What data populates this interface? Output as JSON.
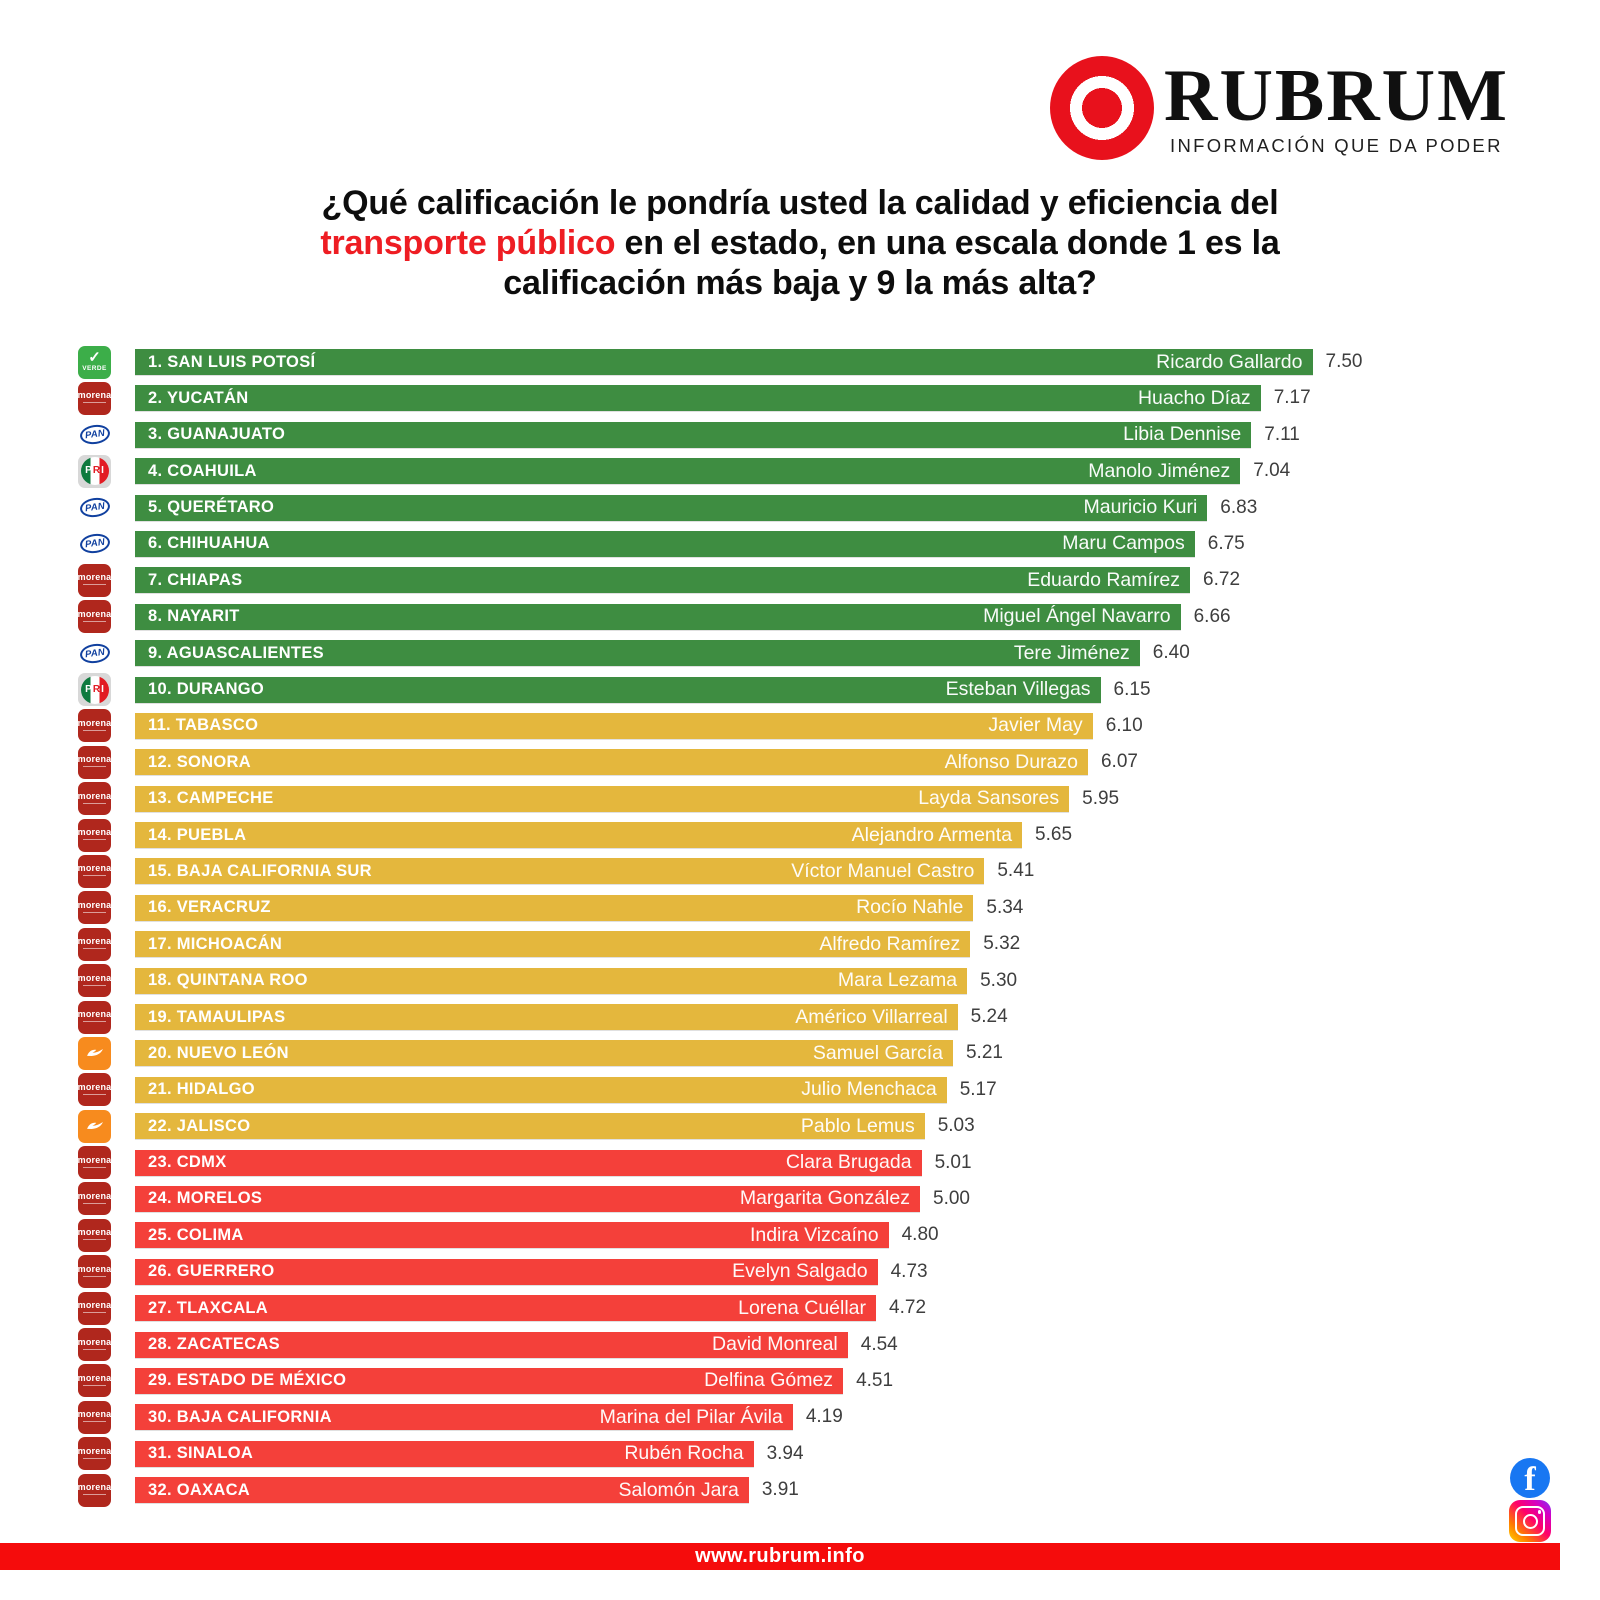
{
  "header": {
    "brand": "RUBRUM",
    "tagline": "INFORMACIÓN QUE DA PODER"
  },
  "title": {
    "line1": "¿Qué calificación le pondría usted la calidad y eficiencia del",
    "line2_highlight": "transporte público",
    "line2_rest": " en el estado, en una escala donde 1 es la",
    "line3": "calificación más baja y 9 la más alta?"
  },
  "footer": {
    "url": "www.rubrum.info"
  },
  "social": {
    "facebook": "Facebook",
    "instagram": "Instagram"
  },
  "colors": {
    "green_bar": "#3e8d41",
    "yellow_bar": "#e4b73d",
    "red_bar": "#f4403a",
    "footer_red": "#f50c0c",
    "logo_red": "#e8111c",
    "title_highlight": "#ee1d23"
  },
  "parties": {
    "PVEM": "VERDE",
    "MORENA": "morena",
    "PAN": "PAN",
    "PRI": "PRI",
    "MC": "MC"
  },
  "chart_data": {
    "type": "bar",
    "orientation": "horizontal",
    "title": "¿Qué calificación le pondría usted la calidad y eficiencia del transporte público en el estado, en una escala donde 1 es la calificación más baja y 9 la más alta?",
    "value_scale": {
      "min": 1,
      "max": 9
    },
    "rows": [
      {
        "rank": 1,
        "state": "SAN LUIS POTOSÍ",
        "governor": "Ricardo Gallardo",
        "score": "7.50",
        "party": "PVEM",
        "group": "green"
      },
      {
        "rank": 2,
        "state": "YUCATÁN",
        "governor": "Huacho Díaz",
        "score": "7.17",
        "party": "MORENA",
        "group": "green"
      },
      {
        "rank": 3,
        "state": "GUANAJUATO",
        "governor": "Libia Dennise",
        "score": "7.11",
        "party": "PAN",
        "group": "green"
      },
      {
        "rank": 4,
        "state": "COAHUILA",
        "governor": "Manolo Jiménez",
        "score": "7.04",
        "party": "PRI",
        "group": "green"
      },
      {
        "rank": 5,
        "state": "QUERÉTARO",
        "governor": "Mauricio Kuri",
        "score": "6.83",
        "party": "PAN",
        "group": "green"
      },
      {
        "rank": 6,
        "state": "CHIHUAHUA",
        "governor": "Maru Campos",
        "score": "6.75",
        "party": "PAN",
        "group": "green"
      },
      {
        "rank": 7,
        "state": "CHIAPAS",
        "governor": "Eduardo Ramírez",
        "score": "6.72",
        "party": "MORENA",
        "group": "green"
      },
      {
        "rank": 8,
        "state": "NAYARIT",
        "governor": "Miguel Ángel Navarro",
        "score": "6.66",
        "party": "MORENA",
        "group": "green"
      },
      {
        "rank": 9,
        "state": "AGUASCALIENTES",
        "governor": "Tere Jiménez",
        "score": "6.40",
        "party": "PAN",
        "group": "green"
      },
      {
        "rank": 10,
        "state": "DURANGO",
        "governor": "Esteban Villegas",
        "score": "6.15",
        "party": "PRI",
        "group": "green"
      },
      {
        "rank": 11,
        "state": "TABASCO",
        "governor": "Javier May",
        "score": "6.10",
        "party": "MORENA",
        "group": "yellow"
      },
      {
        "rank": 12,
        "state": "SONORA",
        "governor": "Alfonso Durazo",
        "score": "6.07",
        "party": "MORENA",
        "group": "yellow"
      },
      {
        "rank": 13,
        "state": "CAMPECHE",
        "governor": "Layda Sansores",
        "score": "5.95",
        "party": "MORENA",
        "group": "yellow"
      },
      {
        "rank": 14,
        "state": "PUEBLA",
        "governor": "Alejandro Armenta",
        "score": "5.65",
        "party": "MORENA",
        "group": "yellow"
      },
      {
        "rank": 15,
        "state": "BAJA CALIFORNIA SUR",
        "governor": "Víctor Manuel Castro",
        "score": "5.41",
        "party": "MORENA",
        "group": "yellow"
      },
      {
        "rank": 16,
        "state": "VERACRUZ",
        "governor": "Rocío Nahle",
        "score": "5.34",
        "party": "MORENA",
        "group": "yellow"
      },
      {
        "rank": 17,
        "state": "MICHOACÁN",
        "governor": "Alfredo Ramírez",
        "score": "5.32",
        "party": "MORENA",
        "group": "yellow"
      },
      {
        "rank": 18,
        "state": "QUINTANA ROO",
        "governor": "Mara Lezama",
        "score": "5.30",
        "party": "MORENA",
        "group": "yellow"
      },
      {
        "rank": 19,
        "state": "TAMAULIPAS",
        "governor": "Américo Villarreal",
        "score": "5.24",
        "party": "MORENA",
        "group": "yellow"
      },
      {
        "rank": 20,
        "state": "NUEVO LEÓN",
        "governor": "Samuel García",
        "score": "5.21",
        "party": "MC",
        "group": "yellow"
      },
      {
        "rank": 21,
        "state": "HIDALGO",
        "governor": "Julio Menchaca",
        "score": "5.17",
        "party": "MORENA",
        "group": "yellow"
      },
      {
        "rank": 22,
        "state": "JALISCO",
        "governor": "Pablo Lemus",
        "score": "5.03",
        "party": "MC",
        "group": "yellow"
      },
      {
        "rank": 23,
        "state": "CDMX",
        "governor": "Clara Brugada",
        "score": "5.01",
        "party": "MORENA",
        "group": "red"
      },
      {
        "rank": 24,
        "state": "MORELOS",
        "governor": "Margarita González",
        "score": "5.00",
        "party": "MORENA",
        "group": "red"
      },
      {
        "rank": 25,
        "state": "COLIMA",
        "governor": "Indira Vizcaíno",
        "score": "4.80",
        "party": "MORENA",
        "group": "red"
      },
      {
        "rank": 26,
        "state": "GUERRERO",
        "governor": "Evelyn Salgado",
        "score": "4.73",
        "party": "MORENA",
        "group": "red"
      },
      {
        "rank": 27,
        "state": "TLAXCALA",
        "governor": "Lorena Cuéllar",
        "score": "4.72",
        "party": "MORENA",
        "group": "red"
      },
      {
        "rank": 28,
        "state": "ZACATECAS",
        "governor": "David Monreal",
        "score": "4.54",
        "party": "MORENA",
        "group": "red"
      },
      {
        "rank": 29,
        "state": "ESTADO DE MÉXICO",
        "governor": "Delfina Gómez",
        "score": "4.51",
        "party": "MORENA",
        "group": "red"
      },
      {
        "rank": 30,
        "state": "BAJA CALIFORNIA",
        "governor": "Marina del Pilar Ávila",
        "score": "4.19",
        "party": "MORENA",
        "group": "red"
      },
      {
        "rank": 31,
        "state": "SINALOA",
        "governor": "Rubén Rocha",
        "score": "3.94",
        "party": "MORENA",
        "group": "red"
      },
      {
        "rank": 32,
        "state": "OAXACA",
        "governor": "Salomón Jara",
        "score": "3.91",
        "party": "MORENA",
        "group": "red"
      }
    ]
  }
}
